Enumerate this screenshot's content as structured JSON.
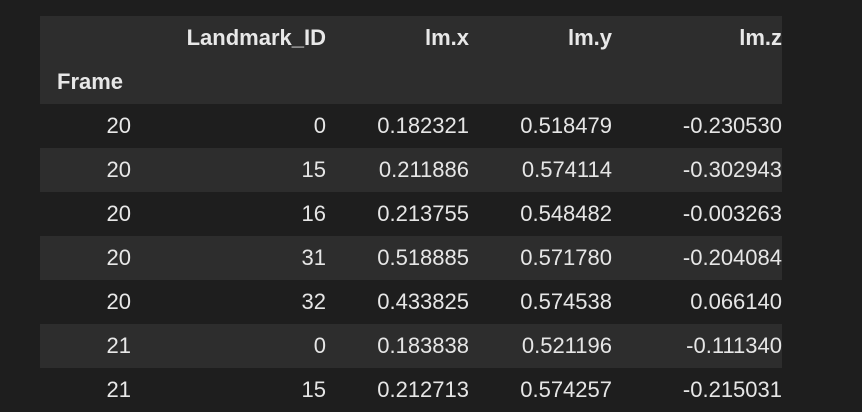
{
  "table": {
    "columns": [
      "Landmark_ID",
      "lm.x",
      "lm.y",
      "lm.z"
    ],
    "index_name": "Frame",
    "rows": [
      {
        "frame": "20",
        "landmark_id": "0",
        "x": "0.182321",
        "y": "0.518479",
        "z": "-0.230530"
      },
      {
        "frame": "20",
        "landmark_id": "15",
        "x": "0.211886",
        "y": "0.574114",
        "z": "-0.302943"
      },
      {
        "frame": "20",
        "landmark_id": "16",
        "x": "0.213755",
        "y": "0.548482",
        "z": "-0.003263"
      },
      {
        "frame": "20",
        "landmark_id": "31",
        "x": "0.518885",
        "y": "0.571780",
        "z": "-0.204084"
      },
      {
        "frame": "20",
        "landmark_id": "32",
        "x": "0.433825",
        "y": "0.574538",
        "z": "0.066140"
      },
      {
        "frame": "21",
        "landmark_id": "0",
        "x": "0.183838",
        "y": "0.521196",
        "z": "-0.111340"
      },
      {
        "frame": "21",
        "landmark_id": "15",
        "x": "0.212713",
        "y": "0.574257",
        "z": "-0.215031"
      }
    ]
  }
}
